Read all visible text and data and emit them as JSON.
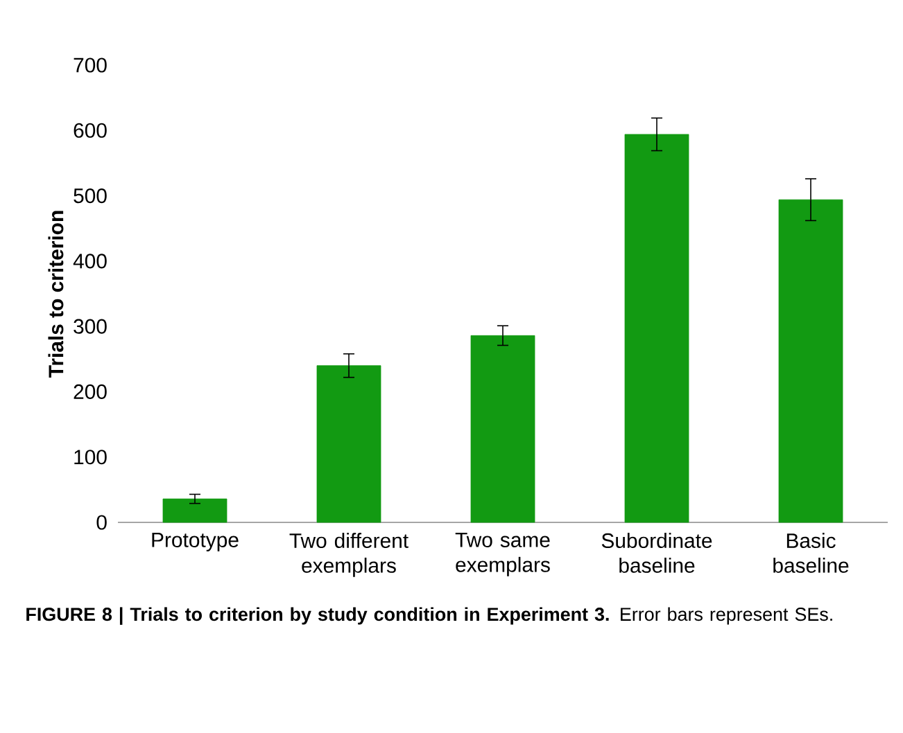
{
  "chart_data": {
    "type": "bar",
    "categories": [
      "Prototype",
      "Two different exemplars",
      "Two same exemplars",
      "Subordinate baseline",
      "Basic baseline"
    ],
    "values": [
      36,
      240,
      286,
      594,
      494
    ],
    "errors": [
      7,
      18,
      15,
      25,
      32
    ],
    "color": "#129a12",
    "ylabel": "Trials to criterion",
    "ylim": [
      0,
      700
    ],
    "yticks": [
      0,
      100,
      200,
      300,
      400,
      500,
      600,
      700
    ],
    "annotations": [
      "**FIGURE 8 | Trials to criterion by study condition in Experiment 3.** Error bars represent SEs."
    ]
  }
}
